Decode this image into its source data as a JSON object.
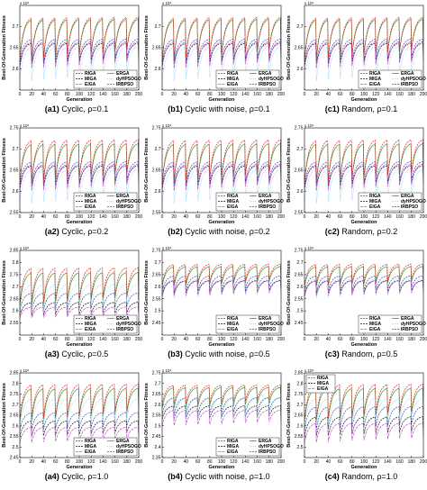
{
  "exponent_label": "x 10⁴",
  "legend": [
    {
      "name": "RIGA",
      "color": "#3a4fa8",
      "dash": "2,1"
    },
    {
      "name": "ERGA",
      "color": "#3c9a3c",
      "dash": ""
    },
    {
      "name": "MIGA",
      "color": "#111111",
      "dash": "2,1"
    },
    {
      "name": "dyHPSOGO",
      "color": "#8fd3ea",
      "dash": "1,1"
    },
    {
      "name": "EIGA",
      "color": "#c04fd0",
      "dash": "3,1"
    },
    {
      "name": "IRBPSO",
      "color": "#e02020",
      "dash": "2,1"
    }
  ],
  "chart_data": [
    {
      "id": "a1",
      "type": "line",
      "caption_id": "(a1)",
      "caption_text": "Cyclic, ρ=0.1",
      "xlabel": "Generation",
      "ylabel": "Best-Of-Generation Fitness",
      "x_range": [
        0,
        200
      ],
      "ylim": [
        2.55,
        2.75
      ],
      "x_ticks": [
        "0",
        "20",
        "40",
        "60",
        "80",
        "100",
        "120",
        "140",
        "160",
        "180",
        "200"
      ],
      "y_ticks": [
        "2.6",
        "2.65",
        "2.7"
      ],
      "series": [
        {
          "name": "RIGA",
          "low": 2.615,
          "high": 2.675
        },
        {
          "name": "ERGA",
          "low": 2.62,
          "high": 2.725
        },
        {
          "name": "MIGA",
          "low": 2.61,
          "high": 2.665
        },
        {
          "name": "dyHPSOGO",
          "low": 2.57,
          "high": 2.66
        },
        {
          "name": "EIGA",
          "low": 2.6,
          "high": 2.67
        },
        {
          "name": "IRBPSO",
          "low": 2.62,
          "high": 2.73
        }
      ]
    },
    {
      "id": "b1",
      "type": "line",
      "caption_id": "(b1)",
      "caption_text": "Cyclic with noise, ρ=0.1",
      "xlabel": "Generation",
      "ylabel": "Best-Of-Generation Fitness",
      "x_range": [
        0,
        200
      ],
      "ylim": [
        2.55,
        2.75
      ],
      "x_ticks": [
        "0",
        "20",
        "40",
        "60",
        "80",
        "100",
        "120",
        "140",
        "160",
        "180",
        "200"
      ],
      "y_ticks": [
        "2.6",
        "2.65",
        "2.7"
      ],
      "series": [
        {
          "name": "RIGA",
          "low": 2.615,
          "high": 2.675
        },
        {
          "name": "ERGA",
          "low": 2.62,
          "high": 2.725
        },
        {
          "name": "MIGA",
          "low": 2.61,
          "high": 2.665
        },
        {
          "name": "dyHPSOGO",
          "low": 2.57,
          "high": 2.66
        },
        {
          "name": "EIGA",
          "low": 2.6,
          "high": 2.67
        },
        {
          "name": "IRBPSO",
          "low": 2.62,
          "high": 2.73
        }
      ]
    },
    {
      "id": "c1",
      "type": "line",
      "caption_id": "(c1)",
      "caption_text": "Random, ρ=0.1",
      "xlabel": "Generation",
      "ylabel": "Best-Of-Generation Fitness",
      "x_range": [
        0,
        200
      ],
      "ylim": [
        2.55,
        2.75
      ],
      "x_ticks": [
        "0",
        "20",
        "40",
        "60",
        "80",
        "100",
        "120",
        "140",
        "160",
        "180",
        "200"
      ],
      "y_ticks": [
        "2.6",
        "2.65",
        "2.7"
      ],
      "series": [
        {
          "name": "RIGA",
          "low": 2.615,
          "high": 2.675
        },
        {
          "name": "ERGA",
          "low": 2.62,
          "high": 2.725
        },
        {
          "name": "MIGA",
          "low": 2.61,
          "high": 2.665
        },
        {
          "name": "dyHPSOGO",
          "low": 2.57,
          "high": 2.66
        },
        {
          "name": "EIGA",
          "low": 2.6,
          "high": 2.67
        },
        {
          "name": "IRBPSO",
          "low": 2.62,
          "high": 2.73
        }
      ]
    },
    {
      "id": "a2",
      "type": "line",
      "caption_id": "(a2)",
      "caption_text": "Cyclic, ρ=0.2",
      "xlabel": "Generation",
      "ylabel": "Best-Of-Generation Fitness",
      "x_range": [
        0,
        200
      ],
      "ylim": [
        2.55,
        2.75
      ],
      "x_ticks": [
        "0",
        "20",
        "40",
        "60",
        "80",
        "100",
        "120",
        "140",
        "160",
        "180",
        "200"
      ],
      "y_ticks": [
        "2.55",
        "2.6",
        "2.65",
        "2.7",
        "2.75"
      ],
      "series": [
        {
          "name": "RIGA",
          "low": 2.615,
          "high": 2.675
        },
        {
          "name": "ERGA",
          "low": 2.62,
          "high": 2.72
        },
        {
          "name": "MIGA",
          "low": 2.61,
          "high": 2.665
        },
        {
          "name": "dyHPSOGO",
          "low": 2.57,
          "high": 2.66
        },
        {
          "name": "EIGA",
          "low": 2.6,
          "high": 2.67
        },
        {
          "name": "IRBPSO",
          "low": 2.62,
          "high": 2.73
        }
      ]
    },
    {
      "id": "b2",
      "type": "line",
      "caption_id": "(b2)",
      "caption_text": "Cyclic with noise, ρ=0.2",
      "xlabel": "Generation",
      "ylabel": "Best-Of-Generation Fitness",
      "x_range": [
        0,
        200
      ],
      "ylim": [
        2.55,
        2.75
      ],
      "x_ticks": [
        "0",
        "20",
        "40",
        "60",
        "80",
        "100",
        "120",
        "140",
        "160",
        "180",
        "200"
      ],
      "y_ticks": [
        "2.55",
        "2.6",
        "2.65",
        "2.7",
        "2.75"
      ],
      "series": [
        {
          "name": "RIGA",
          "low": 2.615,
          "high": 2.675
        },
        {
          "name": "ERGA",
          "low": 2.62,
          "high": 2.72
        },
        {
          "name": "MIGA",
          "low": 2.61,
          "high": 2.665
        },
        {
          "name": "dyHPSOGO",
          "low": 2.57,
          "high": 2.66
        },
        {
          "name": "EIGA",
          "low": 2.6,
          "high": 2.67
        },
        {
          "name": "IRBPSO",
          "low": 2.62,
          "high": 2.73
        }
      ]
    },
    {
      "id": "c2",
      "type": "line",
      "caption_id": "(c2)",
      "caption_text": "Random, ρ=0.2",
      "xlabel": "Generation",
      "ylabel": "Best-Of-Generation Fitness",
      "x_range": [
        0,
        200
      ],
      "ylim": [
        2.55,
        2.75
      ],
      "x_ticks": [
        "0",
        "20",
        "40",
        "60",
        "80",
        "100",
        "120",
        "140",
        "160",
        "180",
        "200"
      ],
      "y_ticks": [
        "2.55",
        "2.6",
        "2.65",
        "2.7",
        "2.75"
      ],
      "series": [
        {
          "name": "RIGA",
          "low": 2.615,
          "high": 2.675
        },
        {
          "name": "ERGA",
          "low": 2.62,
          "high": 2.72
        },
        {
          "name": "MIGA",
          "low": 2.61,
          "high": 2.665
        },
        {
          "name": "dyHPSOGO",
          "low": 2.57,
          "high": 2.66
        },
        {
          "name": "EIGA",
          "low": 2.6,
          "high": 2.67
        },
        {
          "name": "IRBPSO",
          "low": 2.62,
          "high": 2.73
        }
      ]
    },
    {
      "id": "a3",
      "type": "line",
      "caption_id": "(a3)",
      "caption_text": "Cyclic, ρ=0.5",
      "xlabel": "Generation",
      "ylabel": "Best-Of-Generation Fitness",
      "x_range": [
        0,
        200
      ],
      "ylim": [
        2.5,
        2.85
      ],
      "x_ticks": [
        "0",
        "20",
        "40",
        "60",
        "80",
        "100",
        "120",
        "140",
        "160",
        "180",
        "200"
      ],
      "y_ticks": [
        "2.55",
        "2.6",
        "2.65",
        "2.7",
        "2.75",
        "2.8",
        "2.85"
      ],
      "series": [
        {
          "name": "RIGA",
          "low": 2.6,
          "high": 2.68
        },
        {
          "name": "ERGA",
          "low": 2.62,
          "high": 2.77
        },
        {
          "name": "MIGA",
          "low": 2.58,
          "high": 2.64
        },
        {
          "name": "dyHPSOGO",
          "low": 2.6,
          "high": 2.72
        },
        {
          "name": "EIGA",
          "low": 2.57,
          "high": 2.62
        },
        {
          "name": "IRBPSO",
          "low": 2.63,
          "high": 2.79
        }
      ]
    },
    {
      "id": "b3",
      "type": "line",
      "caption_id": "(b3)",
      "caption_text": "Cyclic with noise, ρ=0.5",
      "xlabel": "Generation",
      "ylabel": "Best-Of-Generation Fitness",
      "x_range": [
        0,
        200
      ],
      "ylim": [
        2.4,
        2.75
      ],
      "x_ticks": [
        "0",
        "20",
        "40",
        "60",
        "80",
        "100",
        "120",
        "140",
        "160",
        "180",
        "200"
      ],
      "y_ticks": [
        "2.45",
        "2.5",
        "2.55",
        "2.6",
        "2.65",
        "2.7",
        "2.75"
      ],
      "series": [
        {
          "name": "RIGA",
          "low": 2.58,
          "high": 2.65
        },
        {
          "name": "ERGA",
          "low": 2.6,
          "high": 2.69
        },
        {
          "name": "MIGA",
          "low": 2.57,
          "high": 2.63
        },
        {
          "name": "dyHPSOGO",
          "low": 2.55,
          "high": 2.64
        },
        {
          "name": "EIGA",
          "low": 2.56,
          "high": 2.63
        },
        {
          "name": "IRBPSO",
          "low": 2.61,
          "high": 2.7
        }
      ]
    },
    {
      "id": "c3",
      "type": "line",
      "caption_id": "(c3)",
      "caption_text": "Random, ρ=0.5",
      "xlabel": "Generation",
      "ylabel": "Best-Of-Generation Fitness",
      "x_range": [
        0,
        200
      ],
      "ylim": [
        2.4,
        2.75
      ],
      "x_ticks": [
        "0",
        "20",
        "40",
        "60",
        "80",
        "100",
        "120",
        "140",
        "160",
        "180",
        "200"
      ],
      "y_ticks": [
        "2.45",
        "2.5",
        "2.55",
        "2.6",
        "2.65",
        "2.7",
        "2.75"
      ],
      "series": [
        {
          "name": "RIGA",
          "low": 2.58,
          "high": 2.65
        },
        {
          "name": "ERGA",
          "low": 2.6,
          "high": 2.69
        },
        {
          "name": "MIGA",
          "low": 2.57,
          "high": 2.63
        },
        {
          "name": "dyHPSOGO",
          "low": 2.55,
          "high": 2.64
        },
        {
          "name": "EIGA",
          "low": 2.56,
          "high": 2.63
        },
        {
          "name": "IRBPSO",
          "low": 2.61,
          "high": 2.7
        }
      ]
    },
    {
      "id": "a4",
      "type": "line",
      "caption_id": "(a4)",
      "caption_text": "Cyclic, ρ=1.0",
      "xlabel": "Generation",
      "ylabel": "Best-Of-Generation Fitness",
      "x_range": [
        0,
        200
      ],
      "ylim": [
        2.45,
        2.85
      ],
      "x_ticks": [
        "0",
        "20",
        "40",
        "60",
        "80",
        "100",
        "120",
        "140",
        "160",
        "180",
        "200"
      ],
      "y_ticks": [
        "2.45",
        "2.5",
        "2.55",
        "2.6",
        "2.65",
        "2.7",
        "2.75",
        "2.8",
        "2.85"
      ],
      "series": [
        {
          "name": "RIGA",
          "low": 2.58,
          "high": 2.67
        },
        {
          "name": "ERGA",
          "low": 2.62,
          "high": 2.79
        },
        {
          "name": "MIGA",
          "low": 2.55,
          "high": 2.63
        },
        {
          "name": "dyHPSOGO",
          "low": 2.6,
          "high": 2.74
        },
        {
          "name": "EIGA",
          "low": 2.52,
          "high": 2.6
        },
        {
          "name": "IRBPSO",
          "low": 2.63,
          "high": 2.81
        }
      ]
    },
    {
      "id": "b4",
      "type": "line",
      "caption_id": "(b4)",
      "caption_text": "Cyclic with noise, ρ=1.0",
      "xlabel": "Generation",
      "ylabel": "Best-Of-Generation Fitness",
      "x_range": [
        0,
        200
      ],
      "ylim": [
        2.35,
        2.75
      ],
      "x_ticks": [
        "0",
        "20",
        "40",
        "60",
        "80",
        "100",
        "120",
        "140",
        "160",
        "180",
        "200"
      ],
      "y_ticks": [
        "2.35",
        "2.4",
        "2.45",
        "2.5",
        "2.55",
        "2.6",
        "2.65",
        "2.7",
        "2.75"
      ],
      "series": [
        {
          "name": "RIGA",
          "low": 2.55,
          "high": 2.64
        },
        {
          "name": "ERGA",
          "low": 2.58,
          "high": 2.69
        },
        {
          "name": "MIGA",
          "low": 2.53,
          "high": 2.6
        },
        {
          "name": "dyHPSOGO",
          "low": 2.52,
          "high": 2.64
        },
        {
          "name": "EIGA",
          "low": 2.5,
          "high": 2.58
        },
        {
          "name": "IRBPSO",
          "low": 2.6,
          "high": 2.7
        }
      ]
    },
    {
      "id": "c4",
      "type": "line",
      "caption_id": "(c4)",
      "caption_text": "Random, ρ=1.0",
      "xlabel": "Generation",
      "ylabel": "Best-Of-Generation Fitness",
      "x_range": [
        0,
        200
      ],
      "ylim": [
        2.45,
        2.85
      ],
      "x_ticks": [
        "0",
        "20",
        "40",
        "60",
        "80",
        "100",
        "120",
        "140",
        "160",
        "180",
        "200"
      ],
      "y_ticks": [
        "2.5",
        "2.55",
        "2.6",
        "2.65",
        "2.7",
        "2.75",
        "2.8",
        "2.85"
      ],
      "series": [
        {
          "name": "RIGA",
          "low": 2.58,
          "high": 2.7
        },
        {
          "name": "ERGA",
          "low": 2.62,
          "high": 2.79
        },
        {
          "name": "MIGA",
          "low": 2.55,
          "high": 2.65
        },
        {
          "name": "dyHPSOGO",
          "low": 2.6,
          "high": 2.74
        },
        {
          "name": "EIGA",
          "low": 2.52,
          "high": 2.62
        },
        {
          "name": "IRBPSO",
          "low": 2.63,
          "high": 2.81
        }
      ]
    }
  ]
}
